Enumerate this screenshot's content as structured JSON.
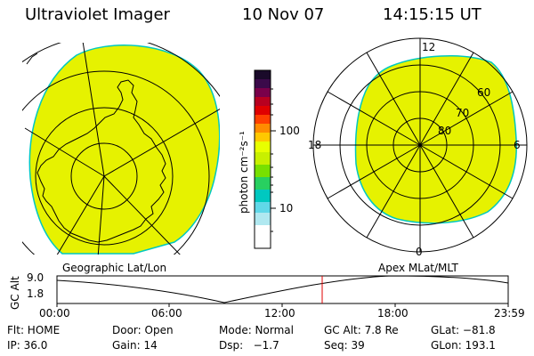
{
  "header": {
    "instrument": "Ultraviolet Imager",
    "date": "10 Nov 07",
    "time": "14:15:15 UT"
  },
  "colorbar": {
    "unit_label": "photon cm⁻²s⁻¹",
    "ticks": [
      "100",
      "10"
    ],
    "scale": "log",
    "colors_top_to_bottom": [
      "#1a0a2a",
      "#3b0a4a",
      "#7a004a",
      "#b80020",
      "#e00000",
      "#ff4000",
      "#ff8c00",
      "#ffc800",
      "#e8ff00",
      "#c8f000",
      "#78e000",
      "#28d060",
      "#00c8c0",
      "#60d8e8",
      "#b0e8f0",
      "#ffffff"
    ]
  },
  "geo_panel": {
    "label": "Geographic Lat/Lon",
    "fill_color": "#e6f200",
    "edge_color": "#00c8c0"
  },
  "mag_panel": {
    "label": "Apex MLat/MLT",
    "lat_labels": [
      "60",
      "70",
      "80"
    ],
    "mlt_labels": {
      "top": "12",
      "left": "18",
      "right": "6",
      "bottom": "0"
    }
  },
  "orbit_plot": {
    "ylabel": "GC Alt",
    "yticks": [
      "9.0",
      "1.8"
    ],
    "xticks": [
      "00:00",
      "06:00",
      "12:00",
      "18:00",
      "23:59"
    ],
    "current_time_color": "#e00000"
  },
  "info": {
    "row1": {
      "flt": "Flt: HOME",
      "door": "Door: Open",
      "mode": "Mode: Normal",
      "gcalt": "GC Alt: 7.8 Re",
      "glat": "GLat: −81.8"
    },
    "row2": {
      "ip": "IP: 36.0",
      "gain": "Gain: 14",
      "dsp": "Dsp:   −1.7",
      "seq": "Seq: 39",
      "glon": "GLon: 193.1"
    }
  }
}
